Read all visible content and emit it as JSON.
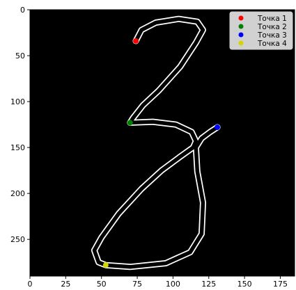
{
  "chart_data": {
    "type": "scatter",
    "xlim": [
      0,
      185
    ],
    "ylim": [
      290,
      0
    ],
    "x_ticks": [
      "0",
      "25",
      "50",
      "75",
      "100",
      "125",
      "150",
      "175"
    ],
    "y_ticks": [
      "0",
      "50",
      "100",
      "150",
      "200",
      "250"
    ],
    "x_tick_values": [
      0,
      25,
      50,
      75,
      100,
      125,
      150,
      175
    ],
    "y_tick_values": [
      0,
      50,
      100,
      150,
      200,
      250
    ],
    "background_color": "#000000",
    "stroke_color": "#ffffff",
    "grid": false,
    "legend_position": "top-right",
    "series": [
      {
        "name": "Точка 1",
        "color": "#ff0000",
        "x": 74,
        "y": 34
      },
      {
        "name": "Точка 2",
        "color": "#008000",
        "x": 70,
        "y": 123
      },
      {
        "name": "Точка 3",
        "color": "#0000ff",
        "x": 131,
        "y": 128
      },
      {
        "name": "Точка 4",
        "color": "#d4d400",
        "x": 53,
        "y": 278
      }
    ],
    "glyph_path": [
      [
        74,
        34
      ],
      [
        78,
        22
      ],
      [
        88,
        14
      ],
      [
        104,
        10
      ],
      [
        117,
        13
      ],
      [
        121,
        22
      ],
      [
        116,
        36
      ],
      [
        105,
        62
      ],
      [
        90,
        88
      ],
      [
        79,
        104
      ],
      [
        72,
        118
      ],
      [
        70,
        123
      ],
      [
        86,
        122
      ],
      [
        102,
        125
      ],
      [
        113,
        133
      ],
      [
        116,
        143
      ],
      [
        114,
        150
      ],
      [
        105,
        160
      ],
      [
        92,
        175
      ],
      [
        78,
        195
      ],
      [
        62,
        222
      ],
      [
        50,
        248
      ],
      [
        45,
        262
      ],
      [
        48,
        275
      ],
      [
        53,
        278
      ],
      [
        70,
        280
      ],
      [
        95,
        276
      ],
      [
        112,
        264
      ],
      [
        120,
        244
      ],
      [
        121,
        210
      ],
      [
        117,
        176
      ],
      [
        116,
        150
      ],
      [
        120,
        140
      ],
      [
        126,
        133
      ],
      [
        131,
        128
      ]
    ]
  }
}
